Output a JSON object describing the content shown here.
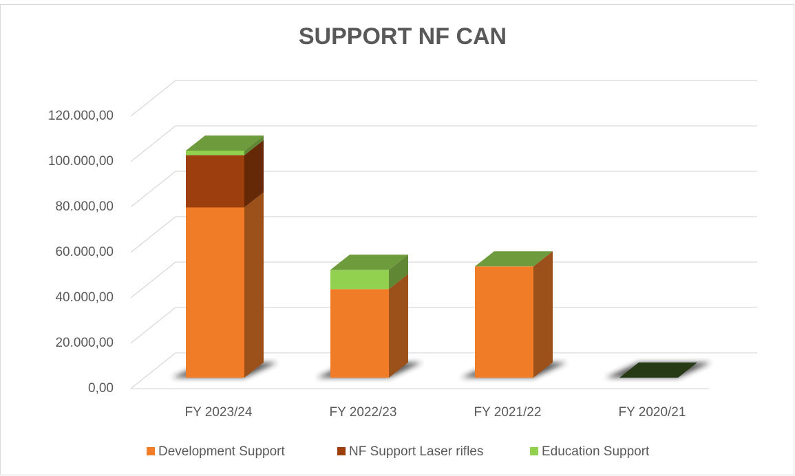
{
  "chart_data": {
    "type": "bar",
    "stacked": true,
    "title": "SUPPORT NF CAN",
    "categories": [
      "FY 2023/24",
      "FY 2022/23",
      "FY 2021/22",
      "FY 2020/21"
    ],
    "series": [
      {
        "name": "Development Support",
        "color": "#f07c28",
        "values": [
          75000,
          39000,
          49000,
          0
        ]
      },
      {
        "name": "NF Support Laser rifles",
        "color": "#9c3f0c",
        "values": [
          23000,
          0,
          0,
          0
        ]
      },
      {
        "name": "Education Support",
        "color": "#92d050",
        "values": [
          2000,
          8500,
          0,
          0
        ]
      }
    ],
    "ylim": [
      0,
      120000
    ],
    "yticks": [
      {
        "value": 0,
        "label": "0,00"
      },
      {
        "value": 20000,
        "label": "20.000,00"
      },
      {
        "value": 40000,
        "label": "40.000,00"
      },
      {
        "value": 60000,
        "label": "60.000,00"
      },
      {
        "value": 80000,
        "label": "80.000,00"
      },
      {
        "value": 100000,
        "label": "100.000,00"
      },
      {
        "value": 120000,
        "label": "120.000,00"
      }
    ],
    "grid": true,
    "legend": "bottom"
  }
}
